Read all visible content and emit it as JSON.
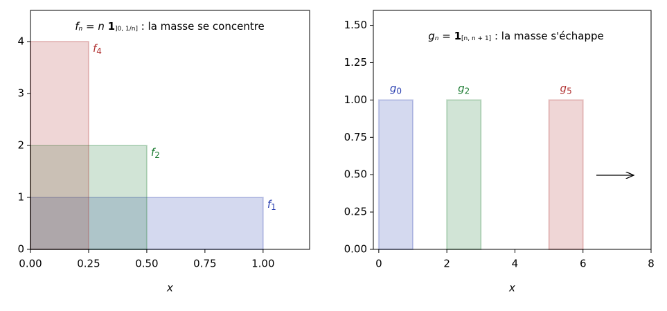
{
  "chart_data": [
    {
      "type": "rect",
      "annotation": [
        {
          "text": "f",
          "style": "italic"
        },
        {
          "text": "n",
          "style": "sub-italic"
        },
        {
          "text": " = ",
          "style": "normal"
        },
        {
          "text": "n ",
          "style": "italic"
        },
        {
          "text": "1",
          "style": "bold"
        },
        {
          "text": "]0, 1/n]",
          "style": "sub"
        },
        {
          "text": " : la masse se concentre",
          "style": "normal"
        }
      ],
      "x_label": "x",
      "label_position": "right",
      "xlim": [
        0,
        1.2
      ],
      "ylim": [
        0,
        4.6
      ],
      "xticks": [
        {
          "value": 0,
          "label": "0.00"
        },
        {
          "value": 0.25,
          "label": "0.25"
        },
        {
          "value": 0.5,
          "label": "0.50"
        },
        {
          "value": 0.75,
          "label": "0.75"
        },
        {
          "value": 1,
          "label": "1.00"
        }
      ],
      "yticks": [
        0,
        1,
        2,
        3,
        4
      ],
      "series": [
        {
          "name": "f",
          "index": "1",
          "color": "#2a3fb0",
          "x": [
            0,
            1
          ],
          "height": 1
        },
        {
          "name": "f",
          "index": "2",
          "color": "#1a7a30",
          "x": [
            0,
            0.5
          ],
          "height": 2
        },
        {
          "name": "f",
          "index": "4",
          "color": "#b03030",
          "x": [
            0,
            0.25
          ],
          "height": 4
        }
      ]
    },
    {
      "type": "rect",
      "annotation": [
        {
          "text": "g",
          "style": "italic"
        },
        {
          "text": "n",
          "style": "sub-italic"
        },
        {
          "text": " = ",
          "style": "normal"
        },
        {
          "text": "1",
          "style": "bold"
        },
        {
          "text": "[n, n + 1]",
          "style": "sub"
        },
        {
          "text": " : la masse s'échappe",
          "style": "normal"
        }
      ],
      "x_label": "x",
      "label_position": "top",
      "xlim": [
        -0.16,
        8
      ],
      "ylim": [
        0,
        1.6
      ],
      "xticks": [
        0,
        2,
        4,
        6,
        8
      ],
      "yticks": [
        {
          "value": 0,
          "label": "0.00"
        },
        {
          "value": 0.25,
          "label": "0.25"
        },
        {
          "value": 0.5,
          "label": "0.50"
        },
        {
          "value": 0.75,
          "label": "0.75"
        },
        {
          "value": 1,
          "label": "1.00"
        },
        {
          "value": 1.25,
          "label": "1.25"
        },
        {
          "value": 1.5,
          "label": "1.50"
        }
      ],
      "series": [
        {
          "name": "g",
          "index": "0",
          "color": "#2a3fb0",
          "x": [
            0,
            1
          ],
          "height": 1
        },
        {
          "name": "g",
          "index": "2",
          "color": "#1a7a30",
          "x": [
            2,
            3
          ],
          "height": 1
        },
        {
          "name": "g",
          "index": "5",
          "color": "#b03030",
          "x": [
            5,
            6
          ],
          "height": 1
        }
      ]
    }
  ]
}
